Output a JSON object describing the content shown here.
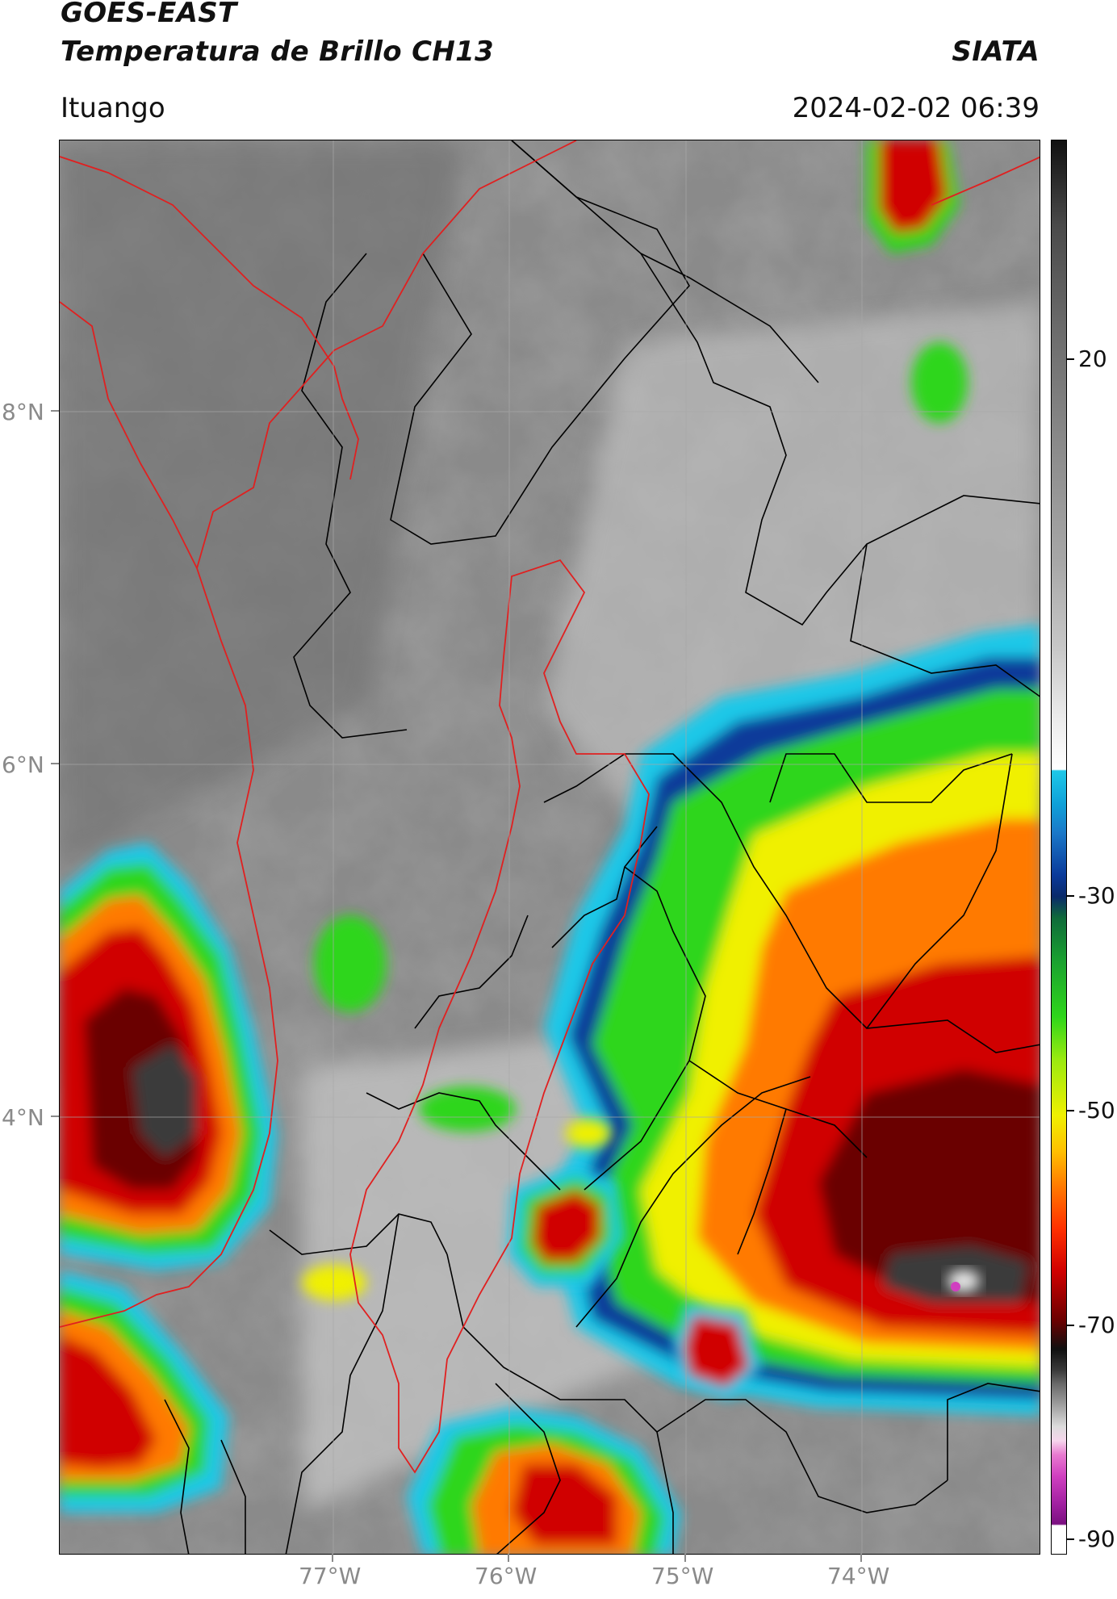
{
  "header": {
    "title_line1": "GOES-EAST",
    "title_line2": "Temperatura de Brillo CH13",
    "brand": "SIATA",
    "location": "Ituango",
    "datetime": "2024-02-02 06:39"
  },
  "axes": {
    "y_ticks": [
      "8°N",
      "6°N",
      "4°N"
    ],
    "x_ticks": [
      "77°W",
      "76°W",
      "75°W",
      "74°W"
    ]
  },
  "colorbar": {
    "ticks": [
      "20",
      "-30",
      "-50",
      "-70",
      "-90"
    ],
    "colors": {
      "warm_gray": "#9a9a9a",
      "cyan": "#1ec8e8",
      "dark_blue": "#0a3a9a",
      "green": "#2ed61a",
      "yellow": "#f0f000",
      "orange": "#ff7a00",
      "red": "#d00000",
      "black": "#101010",
      "magenta": "#d040c0"
    }
  },
  "map": {
    "boundary_colors": {
      "department_borders": "#000000",
      "country_and_basin_borders": "#e02020"
    }
  }
}
